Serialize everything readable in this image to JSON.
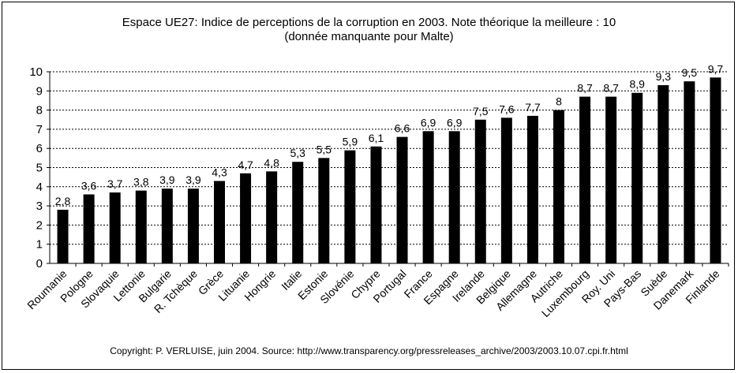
{
  "chart_data": {
    "type": "bar",
    "title": "Espace UE27: Indice de perceptions de la corruption en 2003. Note théorique la meilleure : 10",
    "subtitle": "(donnée manquante pour Malte)",
    "categories": [
      "Roumanie",
      "Pologne",
      "Slovaquie",
      "Lettonie",
      "Bulgarie",
      "R. Tchèque",
      "Grèce",
      "Lituanie",
      "Hongrie",
      "Italie",
      "Estonie",
      "Slovénie",
      "Chypre",
      "Portugal",
      "France",
      "Espagne",
      "Irelande",
      "Belgique",
      "Allemagne",
      "Autriche",
      "Luxembourg",
      "Roy. Uni",
      "Pays-Bas",
      "Suède",
      "Danemark",
      "Finlande"
    ],
    "values": [
      2.8,
      3.6,
      3.7,
      3.8,
      3.9,
      3.9,
      4.3,
      4.7,
      4.8,
      5.3,
      5.5,
      5.9,
      6.1,
      6.6,
      6.9,
      6.9,
      7.5,
      7.6,
      7.7,
      8,
      8.7,
      8.7,
      8.9,
      9.3,
      9.5,
      9.7
    ],
    "value_labels": [
      "2,8",
      "3,6",
      "3,7",
      "3,8",
      "3,9",
      "3,9",
      "4,3",
      "4,7",
      "4,8",
      "5,3",
      "5,5",
      "5,9",
      "6,1",
      "6,6",
      "6,9",
      "6,9",
      "7,5",
      "7,6",
      "7,7",
      "8",
      "8,7",
      "8,7",
      "8,9",
      "9,3",
      "9,5",
      "9,7"
    ],
    "y_ticks": [
      "0",
      "1",
      "2",
      "3",
      "4",
      "5",
      "6",
      "7",
      "8",
      "9",
      "10"
    ],
    "xlabel": "",
    "ylabel": "",
    "ylim": [
      0,
      10
    ],
    "grid": "horizontal dotted",
    "bar_color": "#000000"
  },
  "footer": "Copyright: P. VERLUISE, juin 2004. Source: http://www.transparency.org/pressreleases_archive/2003/2003.10.07.cpi.fr.html"
}
